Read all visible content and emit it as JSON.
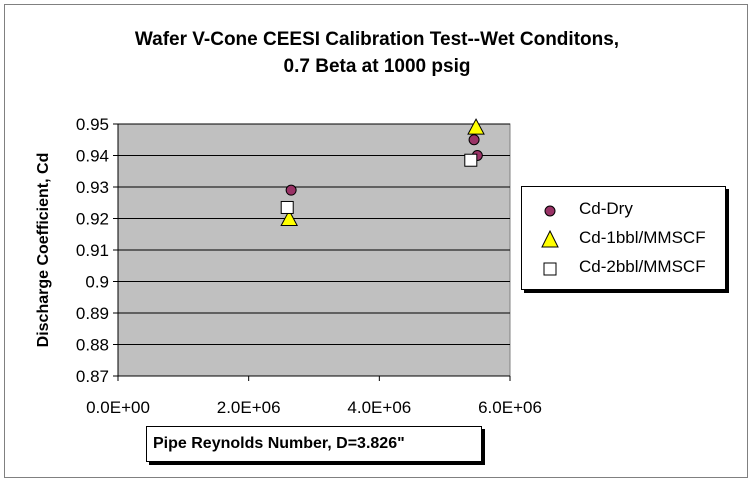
{
  "chart_data": {
    "type": "scatter",
    "title": "Wafer V-Cone CEESI Calibration Test--Wet Conditons,",
    "subtitle": "0.7 Beta at 1000 psig",
    "xlabel": "Pipe Reynolds Number, D=3.826\"",
    "ylabel": "Discharge Coefficient,  Cd",
    "xlim": [
      0,
      6000000
    ],
    "ylim": [
      0.87,
      0.95
    ],
    "x_ticks": [
      "0.0E+00",
      "2.0E+06",
      "4.0E+06",
      "6.0E+06"
    ],
    "x_tick_values": [
      0,
      2000000,
      4000000,
      6000000
    ],
    "y_ticks": [
      "0.87",
      "0.88",
      "0.89",
      "0.9",
      "0.91",
      "0.92",
      "0.93",
      "0.94",
      "0.95"
    ],
    "y_tick_values": [
      0.87,
      0.88,
      0.89,
      0.9,
      0.91,
      0.92,
      0.93,
      0.94,
      0.95
    ],
    "grid": "horizontal",
    "plot_background": "#c0c0c0",
    "legend_position": "right",
    "series": [
      {
        "name": "Cd-Dry",
        "marker": "circle",
        "color": "#993366",
        "points": [
          [
            2650000,
            0.929
          ],
          [
            5450000,
            0.945
          ],
          [
            5500000,
            0.94
          ]
        ]
      },
      {
        "name": "Cd-1bbl/MMSCF",
        "marker": "triangle",
        "color": "#ffff00",
        "points": [
          [
            2620000,
            0.92
          ],
          [
            5480000,
            0.949
          ]
        ]
      },
      {
        "name": "Cd-2bbl/MMSCF",
        "marker": "square",
        "color": "#ffffff",
        "points": [
          [
            2590000,
            0.9235
          ],
          [
            5400000,
            0.9385
          ]
        ]
      }
    ]
  }
}
